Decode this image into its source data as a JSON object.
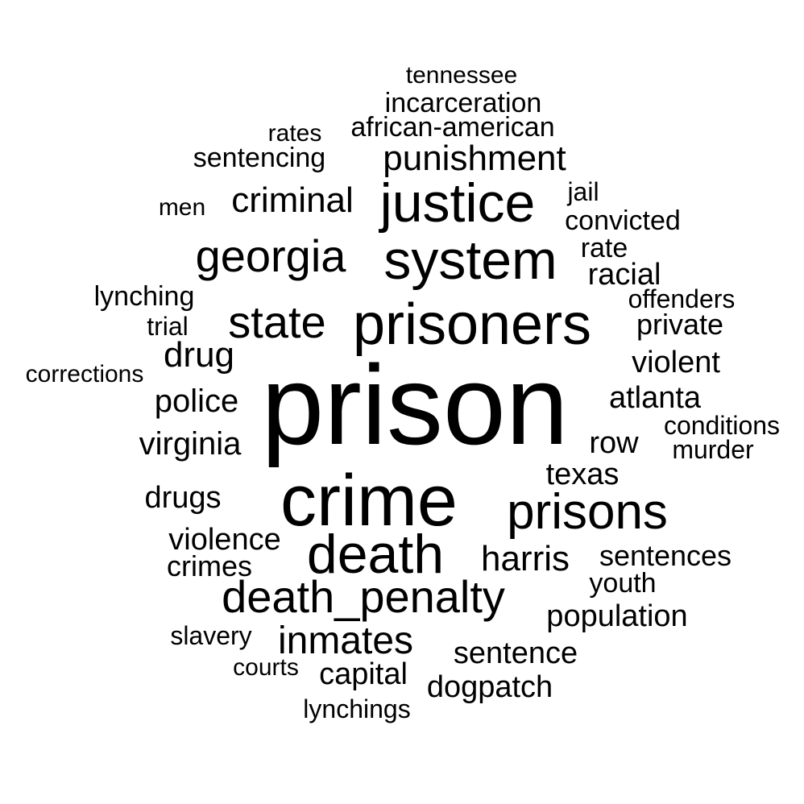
{
  "text_color": "#000000",
  "background_color": "#ffffff",
  "words": [
    {
      "text": "prison"
    },
    {
      "text": "crime"
    },
    {
      "text": "prisoners"
    },
    {
      "text": "system"
    },
    {
      "text": "justice"
    },
    {
      "text": "death"
    },
    {
      "text": "prisons"
    },
    {
      "text": "georgia"
    },
    {
      "text": "state"
    },
    {
      "text": "death_penalty"
    },
    {
      "text": "punishment"
    },
    {
      "text": "criminal"
    },
    {
      "text": "inmates"
    },
    {
      "text": "drug"
    },
    {
      "text": "police"
    },
    {
      "text": "virginia"
    },
    {
      "text": "harris"
    },
    {
      "text": "violence"
    },
    {
      "text": "atlanta"
    },
    {
      "text": "texas"
    },
    {
      "text": "row"
    },
    {
      "text": "population"
    },
    {
      "text": "dogpatch"
    },
    {
      "text": "sentence"
    },
    {
      "text": "incarceration"
    },
    {
      "text": "african-american"
    },
    {
      "text": "convicted"
    },
    {
      "text": "racial"
    },
    {
      "text": "violent"
    },
    {
      "text": "private"
    },
    {
      "text": "sentences"
    },
    {
      "text": "capital"
    },
    {
      "text": "drugs"
    },
    {
      "text": "sentencing"
    },
    {
      "text": "crimes"
    },
    {
      "text": "lynching"
    },
    {
      "text": "tennessee"
    },
    {
      "text": "offenders"
    },
    {
      "text": "conditions"
    },
    {
      "text": "murder"
    },
    {
      "text": "youth"
    },
    {
      "text": "rate"
    },
    {
      "text": "jail"
    },
    {
      "text": "slavery"
    },
    {
      "text": "lynchings"
    },
    {
      "text": "courts"
    },
    {
      "text": "corrections"
    },
    {
      "text": "trial"
    },
    {
      "text": "rates"
    },
    {
      "text": "men"
    }
  ]
}
